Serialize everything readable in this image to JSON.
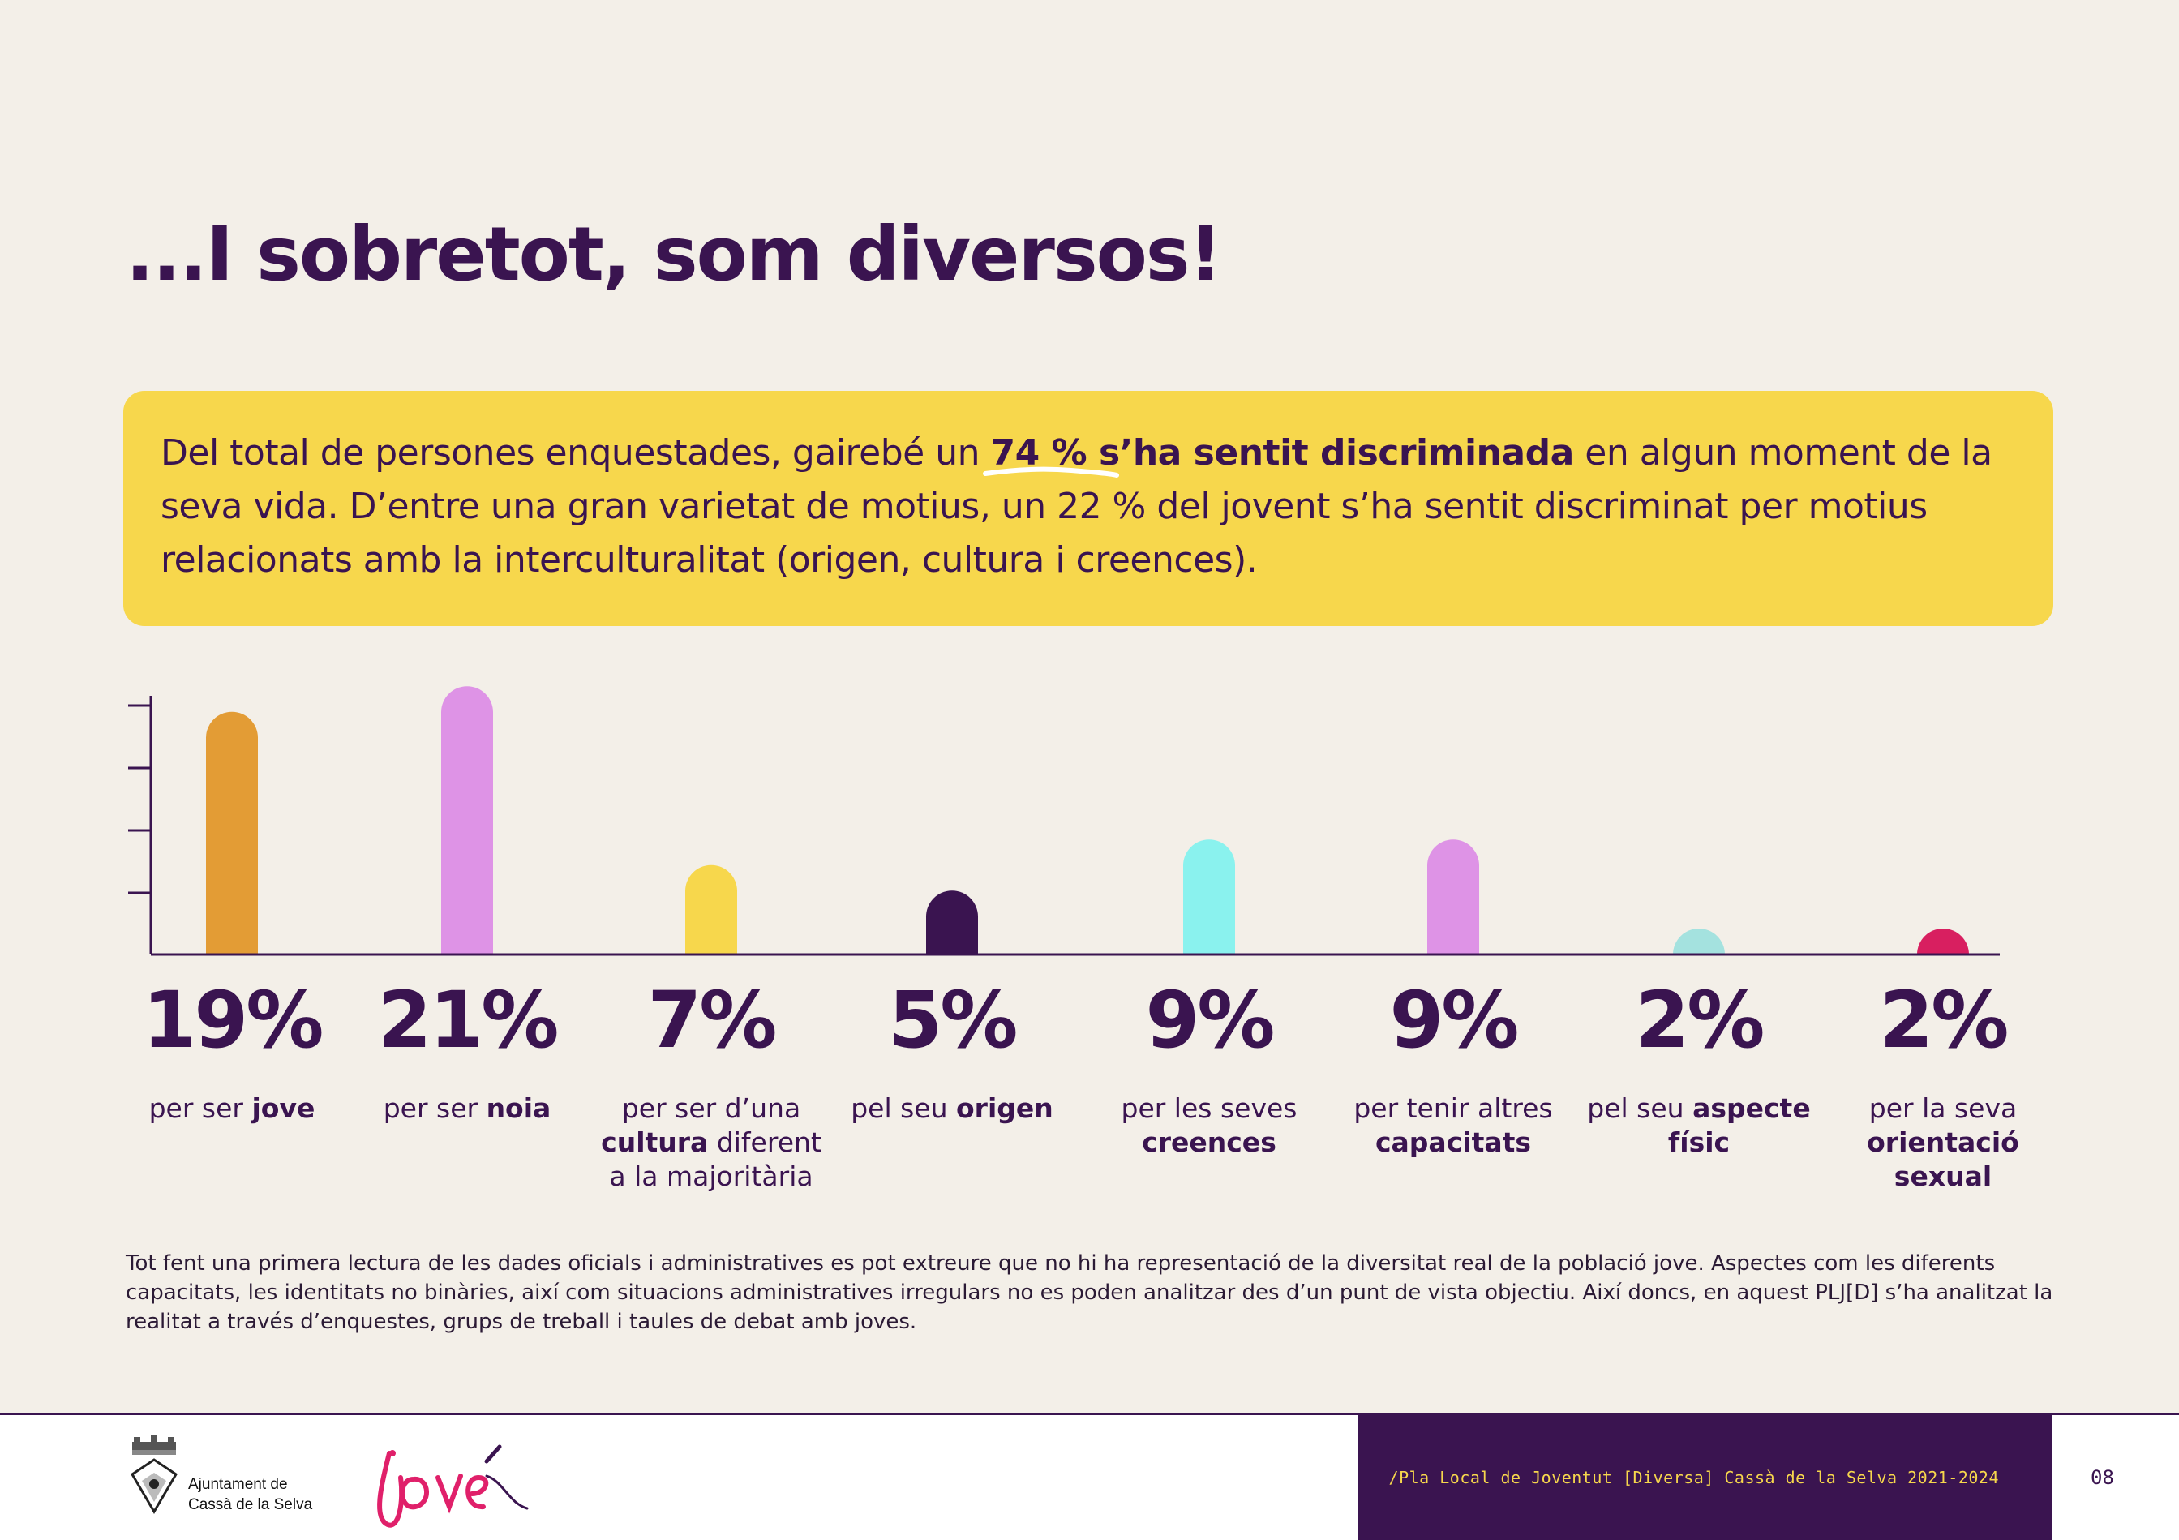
{
  "title": "...I sobretot, som diversos!",
  "callout": {
    "text_1": "Del total de persones enquestades, gairebé un ",
    "highlight": "74 % s’ha sentit discriminada",
    "text_2": " en algun moment de la seva vida. D’entre una gran varietat de motius, un 22 % del jovent s’ha sentit discriminat per motius relacionats amb la  interculturalitat (origen, cultura i creences)."
  },
  "chart_data": {
    "type": "bar",
    "categories": [
      "per ser jove",
      "per ser noia",
      "per ser d’una cultura diferent a la majoritària",
      "pel seu origen",
      "per les seves creences",
      "per tenir altres capacitats",
      "pel seu aspecte físic",
      "per la seva orientació sexual"
    ],
    "values": [
      19,
      21,
      7,
      5,
      9,
      9,
      2,
      2
    ],
    "value_labels": [
      "19%",
      "21%",
      "7%",
      "5%",
      "9%",
      "9%",
      "2%",
      "2%"
    ],
    "colors": [
      "#e39c35",
      "#de93e6",
      "#f7d74c",
      "#3a1450",
      "#8af2ee",
      "#de93e6",
      "#a4e2df",
      "#d81f60"
    ],
    "ylim": [
      0,
      20
    ],
    "grid": false,
    "legend": "none",
    "title": "",
    "xlabel": "",
    "ylabel": ""
  },
  "stats": [
    {
      "pct": "19%",
      "pre": "per ser ",
      "bold": "jove",
      "post": ""
    },
    {
      "pct": "21%",
      "pre": "per ser ",
      "bold": "noia",
      "post": ""
    },
    {
      "pct": "7%",
      "pre": "per ser d’una ",
      "bold": "cultura",
      "post": " diferent a la majoritària"
    },
    {
      "pct": "5%",
      "pre": "pel seu ",
      "bold": "origen",
      "post": ""
    },
    {
      "pct": "9%",
      "pre": "per les seves ",
      "bold": "creences",
      "post": ""
    },
    {
      "pct": "9%",
      "pre": "per tenir altres ",
      "bold": "capacitats",
      "post": ""
    },
    {
      "pct": "2%",
      "pre": "pel seu ",
      "bold": "aspecte físic",
      "post": ""
    },
    {
      "pct": "2%",
      "pre": "per la seva ",
      "bold": "orientació sexual",
      "post": ""
    }
  ],
  "footnote": "Tot fent una primera lectura de les dades oficials i administratives es pot extreure que no hi ha representació de la diversitat real de la població jove. Aspectes com les diferents capacitats, les identitats no binàries, així com situacions administratives irregulars no es poden analitzar des d’un punt de vista objectiu. Així doncs, en aquest PLJ[D] s’ha analitzat la realitat a través d’enquestes, grups de treball i taules de debat amb joves.",
  "footer": {
    "org_line1": "Ajuntament de",
    "org_line2": "Cassà de la Selva",
    "brand_logo": "jove",
    "plan_label": "/Pla Local de Joventut [Diversa] Cassà de la Selva 2021-2024",
    "page": "08"
  }
}
